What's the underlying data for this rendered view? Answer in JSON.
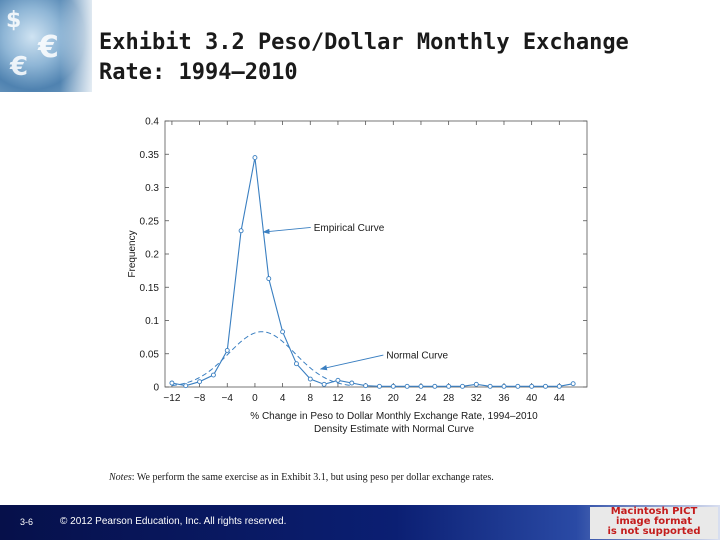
{
  "title": "Exhibit 3.2  Peso/Dollar Monthly Exchange Rate: 1994–2010",
  "notes": {
    "label": "Notes",
    "text": ": We perform the same exercise as in Exhibit 3.1, but using peso per dollar exchange rates."
  },
  "footer": {
    "slide_number": "3-6",
    "copyright": "© 2012 Pearson Education, Inc. All rights reserved."
  },
  "pict_notice": [
    "Macintosh PICT",
    "image format",
    "is not supported"
  ],
  "colors": {
    "series": "#3a7fc1",
    "axis": "#555555",
    "footer_dark": "#06104a",
    "pict_text": "#c41d1d"
  },
  "chart_data": {
    "type": "line",
    "xlabel": "% Change in Peso to Dollar Monthly Exchange Rate, 1994–2010",
    "xlabel2": "Density Estimate with Normal Curve",
    "ylabel": "Frequency",
    "xlim": [
      -13,
      48
    ],
    "ylim": [
      0,
      0.4
    ],
    "x_ticks": [
      -12,
      -8,
      -4,
      0,
      4,
      8,
      12,
      16,
      20,
      24,
      28,
      32,
      36,
      40,
      44
    ],
    "x_tick_labels": [
      "−12",
      "−8",
      "−4",
      "0",
      "4",
      "8",
      "12",
      "16",
      "20",
      "24",
      "28",
      "32",
      "36",
      "40",
      "44"
    ],
    "y_ticks": [
      0,
      0.05,
      0.1,
      0.15,
      0.2,
      0.25,
      0.3,
      0.35,
      0.4
    ],
    "y_tick_labels": [
      "0",
      "0.05",
      "0.1",
      "0.15",
      "0.2",
      "0.25",
      "0.3",
      "0.35",
      "0.4"
    ],
    "series": [
      {
        "name": "Empirical Curve",
        "style": "solid-markers",
        "x": [
          -12,
          -10,
          -8,
          -6,
          -4,
          -2,
          0,
          2,
          4,
          6,
          8,
          10,
          12,
          14,
          16,
          18,
          20,
          22,
          24,
          26,
          28,
          30,
          32,
          34,
          36,
          38,
          40,
          42,
          44,
          46
        ],
        "y": [
          0.006,
          0.002,
          0.008,
          0.018,
          0.055,
          0.235,
          0.345,
          0.163,
          0.083,
          0.035,
          0.012,
          0.004,
          0.01,
          0.006,
          0.002,
          0.001,
          0.001,
          0.001,
          0.001,
          0.001,
          0.001,
          0.001,
          0.004,
          0.001,
          0.001,
          0.001,
          0.001,
          0.001,
          0.001,
          0.005
        ]
      },
      {
        "name": "Normal Curve",
        "style": "dashed",
        "mean": 1,
        "sd": 4.8,
        "x_range": [
          -12,
          14
        ]
      }
    ],
    "annotations": [
      {
        "text": "Empirical Curve",
        "label_x": 8.5,
        "label_y": 0.24,
        "arrow_to_x": 1.2,
        "arrow_to_y": 0.233
      },
      {
        "text": "Normal Curve",
        "label_x": 19,
        "label_y": 0.048,
        "arrow_to_x": 9.5,
        "arrow_to_y": 0.027
      }
    ]
  }
}
